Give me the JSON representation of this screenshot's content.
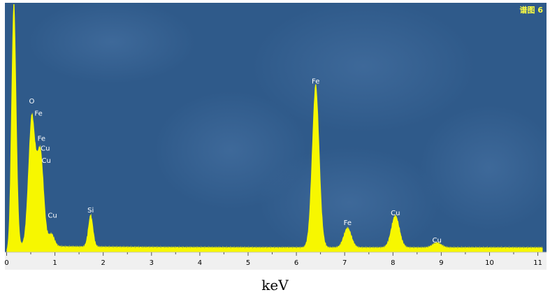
{
  "colors": {
    "plot_background": "#2f5a8a",
    "spectrum": "#f7f700",
    "peak_label": "#ffffff",
    "panel_title": "#ffff40",
    "axis_strip": "#f0f0f0"
  },
  "chart_data": {
    "type": "area",
    "title": "谱图 6",
    "xlabel": "keV",
    "ylabel": "",
    "xlim": [
      0,
      11.1
    ],
    "ylim": [
      0,
      1
    ],
    "grid": false,
    "x_ticks": [
      "0",
      "1",
      "2",
      "3",
      "4",
      "5",
      "6",
      "7",
      "8",
      "9",
      "10",
      "11"
    ],
    "peaks": [
      {
        "center": 0.15,
        "height": 1.0,
        "width": 0.05
      },
      {
        "center": 0.52,
        "height": 0.52,
        "width": 0.07
      },
      {
        "center": 0.7,
        "height": 0.38,
        "width": 0.07
      },
      {
        "center": 0.93,
        "height": 0.05,
        "width": 0.06
      },
      {
        "center": 1.74,
        "height": 0.13,
        "width": 0.05
      },
      {
        "center": 6.4,
        "height": 0.66,
        "width": 0.075
      },
      {
        "center": 7.06,
        "height": 0.08,
        "width": 0.08
      },
      {
        "center": 8.05,
        "height": 0.13,
        "width": 0.085
      },
      {
        "center": 8.91,
        "height": 0.02,
        "width": 0.09
      }
    ],
    "background_level": 0.02,
    "annotations": [
      {
        "text": "O",
        "x": 0.52,
        "y": 0.6
      },
      {
        "text": "Fe",
        "x": 0.66,
        "y": 0.55
      },
      {
        "text": "Fe",
        "x": 0.72,
        "y": 0.45
      },
      {
        "text": "Cu",
        "x": 0.8,
        "y": 0.41
      },
      {
        "text": "Cu",
        "x": 0.82,
        "y": 0.36
      },
      {
        "text": "Cu",
        "x": 0.95,
        "y": 0.14
      },
      {
        "text": "Si",
        "x": 1.74,
        "y": 0.16
      },
      {
        "text": "Fe",
        "x": 6.4,
        "y": 0.68
      },
      {
        "text": "Fe",
        "x": 7.06,
        "y": 0.11
      },
      {
        "text": "Cu",
        "x": 8.05,
        "y": 0.15
      },
      {
        "text": "Cu",
        "x": 8.91,
        "y": 0.04
      }
    ]
  }
}
